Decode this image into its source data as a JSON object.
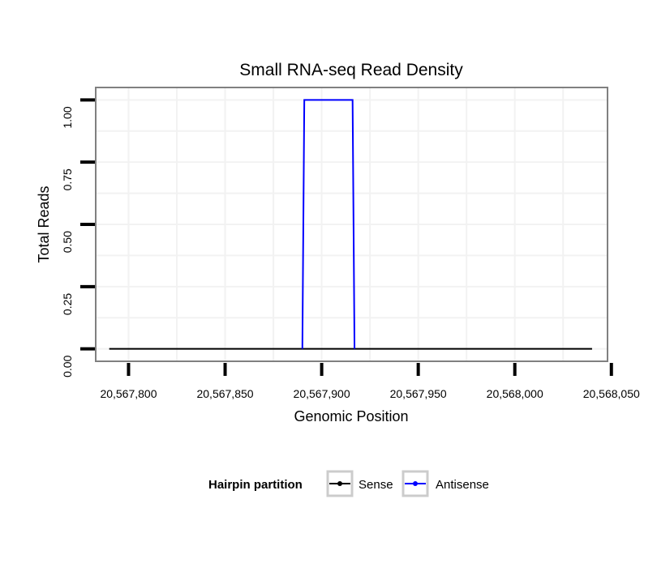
{
  "chart_data": {
    "type": "line",
    "title": "Small RNA-seq Read Density",
    "xlabel": "Genomic Position",
    "ylabel": "Total Reads",
    "xlim": [
      20567783,
      20568048
    ],
    "ylim": [
      -0.05,
      1.05
    ],
    "x_ticks": [
      20567800,
      20567850,
      20567900,
      20567950,
      20568000,
      20568050
    ],
    "x_tick_labels": [
      "20,567,800",
      "20,567,850",
      "20,567,900",
      "20,567,950",
      "20,568,000",
      "20,568,050"
    ],
    "y_ticks": [
      0,
      0.25,
      0.5,
      0.75,
      1.0
    ],
    "y_tick_labels": [
      "0.00",
      "0.25",
      "0.50",
      "0.75",
      "1.00"
    ],
    "grid": true,
    "legend": {
      "title": "Hairpin partition",
      "position": "bottom",
      "entries": [
        {
          "label": "Sense",
          "color": "#000000"
        },
        {
          "label": "Antisense",
          "color": "#0000ff"
        }
      ]
    },
    "series": [
      {
        "name": "Sense",
        "color": "#000000",
        "x": [
          20567790,
          20568040
        ],
        "y": [
          0,
          0
        ]
      },
      {
        "name": "Antisense",
        "color": "#0000ff",
        "x": [
          20567890,
          20567891,
          20567916,
          20567917
        ],
        "y": [
          0,
          1,
          1,
          0
        ]
      }
    ]
  }
}
